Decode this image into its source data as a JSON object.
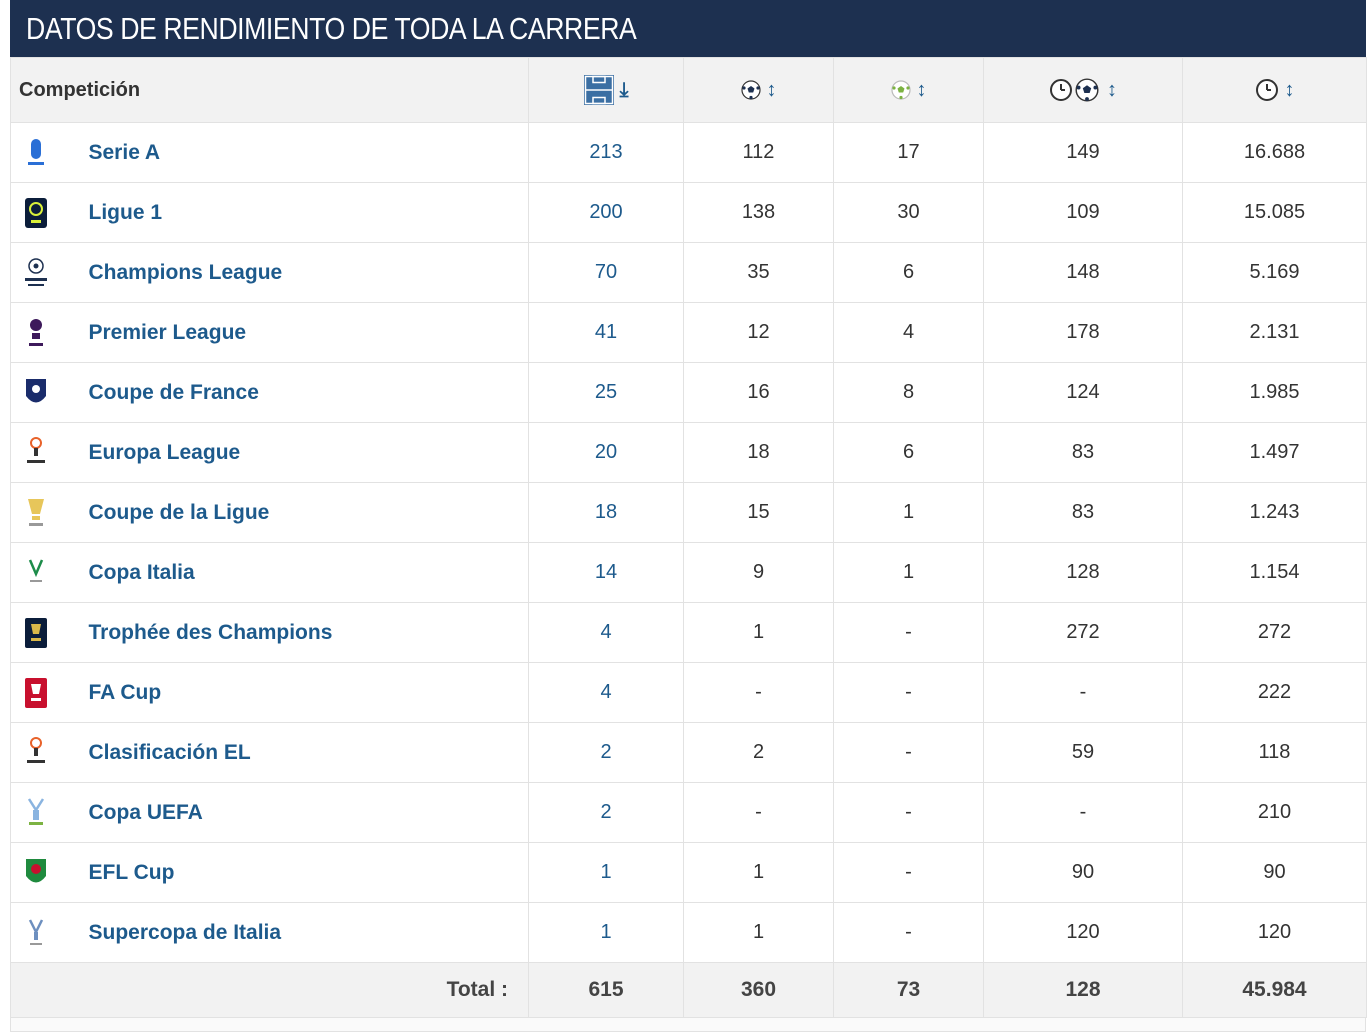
{
  "title": "DATOS DE RENDIMIENTO DE TODA LA CARRERA",
  "columns": {
    "competition": "Competición",
    "appearances_icon": "pitch-icon",
    "goals_icon": "ball-icon",
    "assists_icon": "assist-ball-icon",
    "minutes_per_goal_icon": "clock-ball-icon",
    "minutes_icon": "clock-icon"
  },
  "colors": {
    "header_bg": "#1d3050",
    "link": "#1d5a8c"
  },
  "rows": [
    {
      "icon": "serie-a-logo-icon",
      "name": "Serie A",
      "apps": "213",
      "goals": "112",
      "assists": "17",
      "min_per_goal": "149",
      "minutes": "16.688"
    },
    {
      "icon": "ligue-1-logo-icon",
      "name": "Ligue 1",
      "apps": "200",
      "goals": "138",
      "assists": "30",
      "min_per_goal": "109",
      "minutes": "15.085"
    },
    {
      "icon": "champions-league-logo-icon",
      "name": "Champions League",
      "apps": "70",
      "goals": "35",
      "assists": "6",
      "min_per_goal": "148",
      "minutes": "5.169"
    },
    {
      "icon": "premier-league-logo-icon",
      "name": "Premier League",
      "apps": "41",
      "goals": "12",
      "assists": "4",
      "min_per_goal": "178",
      "minutes": "2.131"
    },
    {
      "icon": "coupe-de-france-logo-icon",
      "name": "Coupe de France",
      "apps": "25",
      "goals": "16",
      "assists": "8",
      "min_per_goal": "124",
      "minutes": "1.985"
    },
    {
      "icon": "europa-league-logo-icon",
      "name": "Europa League",
      "apps": "20",
      "goals": "18",
      "assists": "6",
      "min_per_goal": "83",
      "minutes": "1.497"
    },
    {
      "icon": "coupe-de-la-ligue-logo-icon",
      "name": "Coupe de la Ligue",
      "apps": "18",
      "goals": "15",
      "assists": "1",
      "min_per_goal": "83",
      "minutes": "1.243"
    },
    {
      "icon": "copa-italia-logo-icon",
      "name": "Copa Italia",
      "apps": "14",
      "goals": "9",
      "assists": "1",
      "min_per_goal": "128",
      "minutes": "1.154"
    },
    {
      "icon": "trophee-des-champions-logo-icon",
      "name": "Trophée des Champions",
      "apps": "4",
      "goals": "1",
      "assists": "-",
      "min_per_goal": "272",
      "minutes": "272"
    },
    {
      "icon": "fa-cup-logo-icon",
      "name": "FA Cup",
      "apps": "4",
      "goals": "-",
      "assists": "-",
      "min_per_goal": "-",
      "minutes": "222"
    },
    {
      "icon": "europa-league-logo-icon",
      "name": "Clasificación EL",
      "apps": "2",
      "goals": "2",
      "assists": "-",
      "min_per_goal": "59",
      "minutes": "118"
    },
    {
      "icon": "copa-uefa-logo-icon",
      "name": "Copa UEFA",
      "apps": "2",
      "goals": "-",
      "assists": "-",
      "min_per_goal": "-",
      "minutes": "210"
    },
    {
      "icon": "efl-cup-logo-icon",
      "name": "EFL Cup",
      "apps": "1",
      "goals": "1",
      "assists": "-",
      "min_per_goal": "90",
      "minutes": "90"
    },
    {
      "icon": "supercopa-italia-logo-icon",
      "name": "Supercopa de Italia",
      "apps": "1",
      "goals": "1",
      "assists": "-",
      "min_per_goal": "120",
      "minutes": "120"
    }
  ],
  "totals": {
    "label": "Total :",
    "apps": "615",
    "goals": "360",
    "assists": "73",
    "min_per_goal": "128",
    "minutes": "45.984"
  }
}
